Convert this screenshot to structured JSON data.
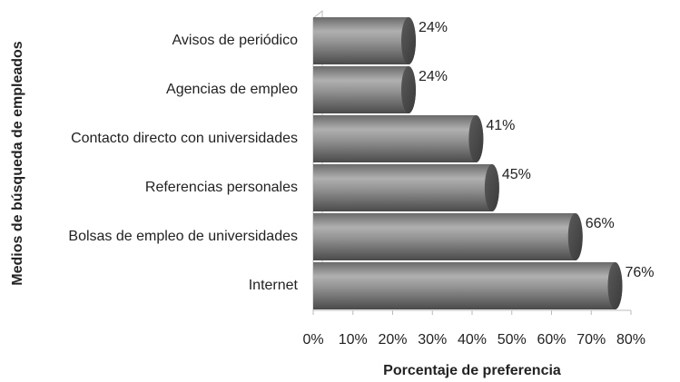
{
  "chart_data": {
    "type": "bar",
    "orientation": "horizontal",
    "xlabel": "Porcentaje de preferencia",
    "ylabel": "Medios de búsqueda de empleados",
    "categories": [
      "Avisos de periódico",
      "Agencias de empleo",
      "Contacto directo con universidades",
      "Referencias personales",
      "Bolsas de empleo de universidades",
      "Internet"
    ],
    "values": [
      24,
      24,
      41,
      45,
      66,
      76
    ],
    "value_labels": [
      "24%",
      "24%",
      "41%",
      "45%",
      "66%",
      "76%"
    ],
    "color": "#7a7a7a",
    "xlim": [
      0,
      80
    ],
    "xticks": [
      {
        "value": 0,
        "label": "0%"
      },
      {
        "value": 10,
        "label": "10%"
      },
      {
        "value": 20,
        "label": "20%"
      },
      {
        "value": 30,
        "label": "30%"
      },
      {
        "value": 40,
        "label": "40%"
      },
      {
        "value": 50,
        "label": "50%"
      },
      {
        "value": 60,
        "label": "60%"
      },
      {
        "value": 70,
        "label": "70%"
      },
      {
        "value": 80,
        "label": "80%"
      }
    ]
  }
}
